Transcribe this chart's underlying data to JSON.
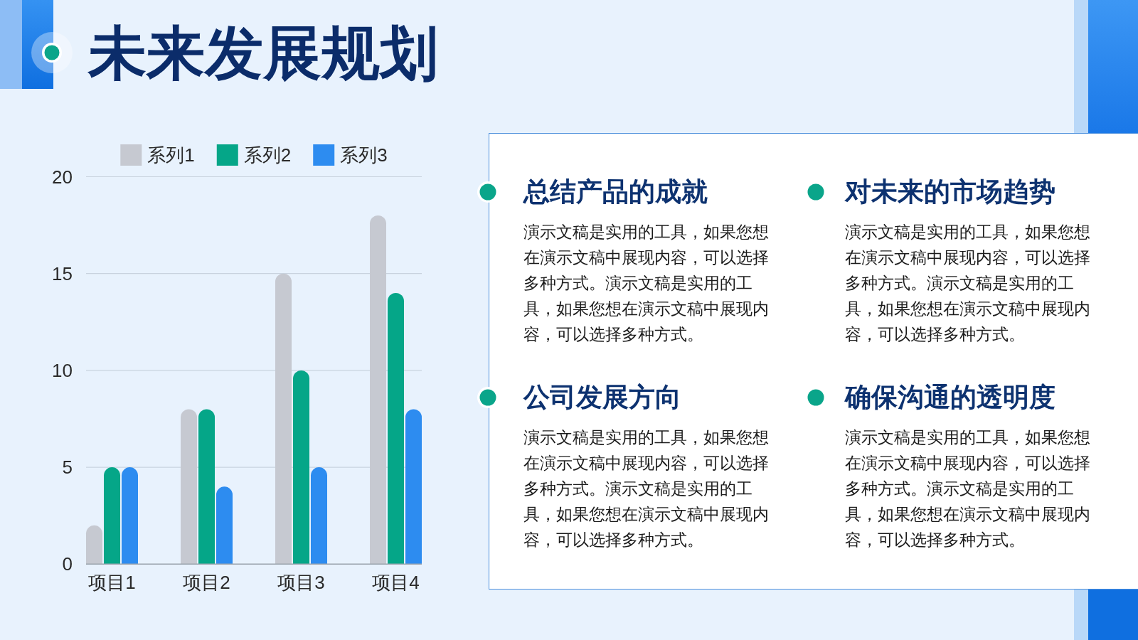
{
  "chart_data": [
    {
      "type": "bar",
      "title": "未来发展规划",
      "categories": [
        "项目1",
        "项目2",
        "项目3",
        "项目4"
      ],
      "series": [
        {
          "name": "系列1",
          "color": "#c6c9d1",
          "values": [
            2,
            8,
            15,
            18
          ]
        },
        {
          "name": "系列2",
          "color": "#05a688",
          "values": [
            5,
            8,
            10,
            14
          ]
        },
        {
          "name": "系列3",
          "color": "#2d8cf0",
          "values": [
            5,
            4,
            5,
            8
          ]
        }
      ],
      "ylim": [
        0,
        20
      ],
      "yticks": [
        0,
        5,
        10,
        15,
        20
      ],
      "grid": "y",
      "legend": "top"
    },
    {
      "type": "other",
      "annotations": [
        "总结产品的成就",
        "演示文稿是实用的工具，如果您想在演示文稿中展现内容，可以选择多种方式。演示文稿是实用的工具，如果您想在演示文稿中展现内容，可以选择多种方式。",
        "对未来的市场趋势",
        "演示文稿是实用的工具，如果您想在演示文稿中展现内容，可以选择多种方式。演示文稿是实用的工具，如果您想在演示文稿中展现内容，可以选择多种方式。",
        "公司发展方向",
        "演示文稿是实用的工具，如果您想在演示文稿中展现内容，可以选择多种方式。演示文稿是实用的工具，如果您想在演示文稿中展现内容，可以选择多种方式。",
        "确保沟通的透明度",
        "演示文稿是实用的工具，如果您想在演示文稿中展现内容，可以选择多种方式。演示文稿是实用的工具，如果您想在演示文稿中展现内容，可以选择多种方式。"
      ]
    }
  ]
}
